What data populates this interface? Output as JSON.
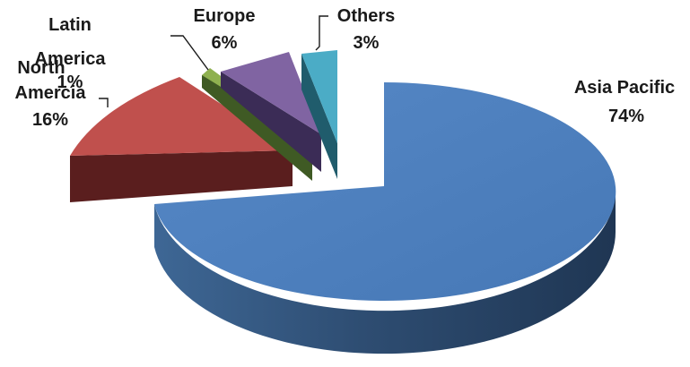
{
  "chart_data": {
    "type": "pie",
    "style": "3d-exploded",
    "slices": [
      {
        "name": "Asia Pacific",
        "pct_label": "74%",
        "value": 74,
        "color": "#4f81bd"
      },
      {
        "name": "North Amercia",
        "pct_label": "16%",
        "value": 16,
        "color": "#c0504d"
      },
      {
        "name": "Latin America",
        "pct_label": "1%",
        "value": 1,
        "color": "#9bbb59"
      },
      {
        "name": "Europe",
        "pct_label": "6%",
        "value": 6,
        "color": "#8064a2"
      },
      {
        "name": "Others",
        "pct_label": "3%",
        "value": 3,
        "color": "#4bacc6"
      }
    ]
  }
}
